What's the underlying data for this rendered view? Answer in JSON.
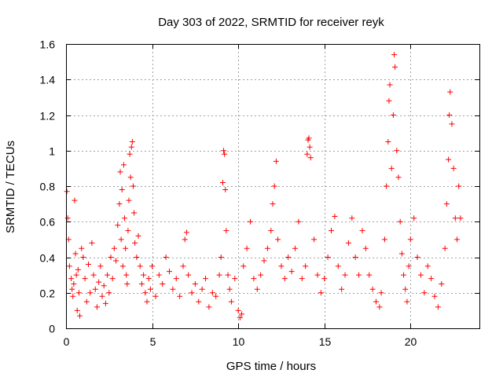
{
  "chart_data": {
    "type": "scatter",
    "title": "Day 303 of 2022, SRMTID for receiver reyk",
    "xlabel": "GPS time / hours",
    "ylabel": "SRMTID / TECUs",
    "xlim": [
      0,
      24
    ],
    "ylim": [
      0,
      1.6
    ],
    "xticks": [
      0,
      5,
      10,
      15,
      20
    ],
    "xtick_labels": [
      "0",
      "5",
      "10",
      "15",
      "20"
    ],
    "yticks": [
      0,
      0.2,
      0.4,
      0.6,
      0.8,
      1,
      1.2,
      1.4,
      1.6
    ],
    "ytick_labels": [
      "0",
      "0.2",
      "0.4",
      "0.6",
      "0.8",
      "1",
      "1.2",
      "1.4",
      "1.6"
    ],
    "grid": true,
    "marker": "+",
    "color": "#ff0000",
    "series": [
      {
        "name": "SRMTID",
        "points": [
          [
            0.05,
            0.77
          ],
          [
            0.1,
            0.62
          ],
          [
            0.15,
            0.5
          ],
          [
            0.2,
            0.35
          ],
          [
            0.3,
            0.28
          ],
          [
            0.35,
            0.22
          ],
          [
            0.4,
            0.18
          ],
          [
            0.45,
            0.25
          ],
          [
            0.5,
            0.72
          ],
          [
            0.55,
            0.42
          ],
          [
            0.6,
            0.3
          ],
          [
            0.65,
            0.1
          ],
          [
            0.7,
            0.33
          ],
          [
            0.75,
            0.2
          ],
          [
            0.8,
            0.07
          ],
          [
            0.9,
            0.45
          ],
          [
            1.0,
            0.4
          ],
          [
            1.1,
            0.28
          ],
          [
            1.2,
            0.15
          ],
          [
            1.3,
            0.36
          ],
          [
            1.4,
            0.2
          ],
          [
            1.5,
            0.48
          ],
          [
            1.6,
            0.3
          ],
          [
            1.7,
            0.22
          ],
          [
            1.8,
            0.12
          ],
          [
            1.9,
            0.26
          ],
          [
            2.0,
            0.35
          ],
          [
            2.1,
            0.18
          ],
          [
            2.2,
            0.24
          ],
          [
            2.3,
            0.14
          ],
          [
            2.4,
            0.3
          ],
          [
            2.5,
            0.2
          ],
          [
            2.6,
            0.4
          ],
          [
            2.7,
            0.28
          ],
          [
            2.8,
            0.45
          ],
          [
            2.9,
            0.38
          ],
          [
            3.0,
            0.58
          ],
          [
            3.1,
            0.7
          ],
          [
            3.15,
            0.88
          ],
          [
            3.2,
            0.5
          ],
          [
            3.25,
            0.78
          ],
          [
            3.3,
            0.35
          ],
          [
            3.35,
            0.92
          ],
          [
            3.4,
            0.62
          ],
          [
            3.45,
            0.45
          ],
          [
            3.5,
            0.3
          ],
          [
            3.55,
            0.25
          ],
          [
            3.6,
            0.55
          ],
          [
            3.65,
            0.72
          ],
          [
            3.7,
            0.98
          ],
          [
            3.75,
            0.85
          ],
          [
            3.8,
            1.02
          ],
          [
            3.85,
            1.05
          ],
          [
            3.9,
            0.8
          ],
          [
            3.95,
            0.65
          ],
          [
            4.0,
            0.48
          ],
          [
            4.1,
            0.4
          ],
          [
            4.2,
            0.52
          ],
          [
            4.3,
            0.35
          ],
          [
            4.4,
            0.25
          ],
          [
            4.5,
            0.3
          ],
          [
            4.6,
            0.2
          ],
          [
            4.7,
            0.15
          ],
          [
            4.8,
            0.28
          ],
          [
            4.9,
            0.22
          ],
          [
            5.0,
            0.35
          ],
          [
            5.2,
            0.18
          ],
          [
            5.4,
            0.3
          ],
          [
            5.6,
            0.25
          ],
          [
            5.8,
            0.4
          ],
          [
            6.0,
            0.32
          ],
          [
            6.2,
            0.22
          ],
          [
            6.4,
            0.28
          ],
          [
            6.6,
            0.18
          ],
          [
            6.8,
            0.35
          ],
          [
            6.9,
            0.5
          ],
          [
            7.0,
            0.54
          ],
          [
            7.1,
            0.3
          ],
          [
            7.3,
            0.2
          ],
          [
            7.5,
            0.25
          ],
          [
            7.7,
            0.15
          ],
          [
            7.9,
            0.22
          ],
          [
            8.1,
            0.28
          ],
          [
            8.3,
            0.12
          ],
          [
            8.5,
            0.2
          ],
          [
            8.7,
            0.18
          ],
          [
            8.9,
            0.3
          ],
          [
            9.0,
            0.4
          ],
          [
            9.1,
            0.82
          ],
          [
            9.15,
            1.0
          ],
          [
            9.2,
            0.98
          ],
          [
            9.25,
            0.78
          ],
          [
            9.3,
            0.55
          ],
          [
            9.4,
            0.3
          ],
          [
            9.5,
            0.22
          ],
          [
            9.6,
            0.15
          ],
          [
            9.8,
            0.28
          ],
          [
            10.0,
            0.1
          ],
          [
            10.1,
            0.06
          ],
          [
            10.2,
            0.08
          ],
          [
            10.3,
            0.35
          ],
          [
            10.5,
            0.45
          ],
          [
            10.7,
            0.6
          ],
          [
            10.9,
            0.28
          ],
          [
            11.1,
            0.22
          ],
          [
            11.3,
            0.3
          ],
          [
            11.5,
            0.38
          ],
          [
            11.7,
            0.45
          ],
          [
            11.9,
            0.55
          ],
          [
            12.0,
            0.7
          ],
          [
            12.1,
            0.8
          ],
          [
            12.2,
            0.94
          ],
          [
            12.3,
            0.5
          ],
          [
            12.5,
            0.35
          ],
          [
            12.7,
            0.28
          ],
          [
            12.9,
            0.4
          ],
          [
            13.1,
            0.32
          ],
          [
            13.3,
            0.45
          ],
          [
            13.5,
            0.6
          ],
          [
            13.7,
            0.28
          ],
          [
            13.9,
            0.35
          ],
          [
            14.0,
            0.98
          ],
          [
            14.05,
            1.06
          ],
          [
            14.1,
            1.07
          ],
          [
            14.15,
            1.02
          ],
          [
            14.2,
            0.96
          ],
          [
            14.4,
            0.5
          ],
          [
            14.6,
            0.3
          ],
          [
            14.8,
            0.2
          ],
          [
            15.0,
            0.28
          ],
          [
            15.2,
            0.4
          ],
          [
            15.4,
            0.55
          ],
          [
            15.6,
            0.63
          ],
          [
            15.8,
            0.35
          ],
          [
            16.0,
            0.22
          ],
          [
            16.2,
            0.3
          ],
          [
            16.4,
            0.48
          ],
          [
            16.6,
            0.62
          ],
          [
            16.8,
            0.4
          ],
          [
            17.0,
            0.3
          ],
          [
            17.2,
            0.55
          ],
          [
            17.4,
            0.45
          ],
          [
            17.6,
            0.3
          ],
          [
            17.8,
            0.22
          ],
          [
            18.0,
            0.15
          ],
          [
            18.2,
            0.12
          ],
          [
            18.3,
            0.2
          ],
          [
            18.5,
            0.5
          ],
          [
            18.6,
            0.8
          ],
          [
            18.7,
            1.05
          ],
          [
            18.75,
            1.28
          ],
          [
            18.8,
            1.37
          ],
          [
            18.9,
            0.9
          ],
          [
            19.0,
            1.2
          ],
          [
            19.05,
            1.54
          ],
          [
            19.1,
            1.47
          ],
          [
            19.2,
            1.0
          ],
          [
            19.3,
            0.85
          ],
          [
            19.4,
            0.6
          ],
          [
            19.5,
            0.42
          ],
          [
            19.6,
            0.3
          ],
          [
            19.7,
            0.22
          ],
          [
            19.8,
            0.15
          ],
          [
            19.9,
            0.35
          ],
          [
            20.0,
            0.5
          ],
          [
            20.2,
            0.62
          ],
          [
            20.4,
            0.4
          ],
          [
            20.6,
            0.3
          ],
          [
            20.8,
            0.2
          ],
          [
            21.0,
            0.35
          ],
          [
            21.2,
            0.28
          ],
          [
            21.4,
            0.18
          ],
          [
            21.6,
            0.12
          ],
          [
            21.8,
            0.25
          ],
          [
            22.0,
            0.45
          ],
          [
            22.1,
            0.7
          ],
          [
            22.2,
            0.95
          ],
          [
            22.25,
            1.2
          ],
          [
            22.3,
            1.33
          ],
          [
            22.4,
            1.15
          ],
          [
            22.5,
            0.9
          ],
          [
            22.6,
            0.62
          ],
          [
            22.7,
            0.5
          ],
          [
            22.8,
            0.8
          ],
          [
            22.9,
            0.62
          ]
        ]
      }
    ]
  }
}
